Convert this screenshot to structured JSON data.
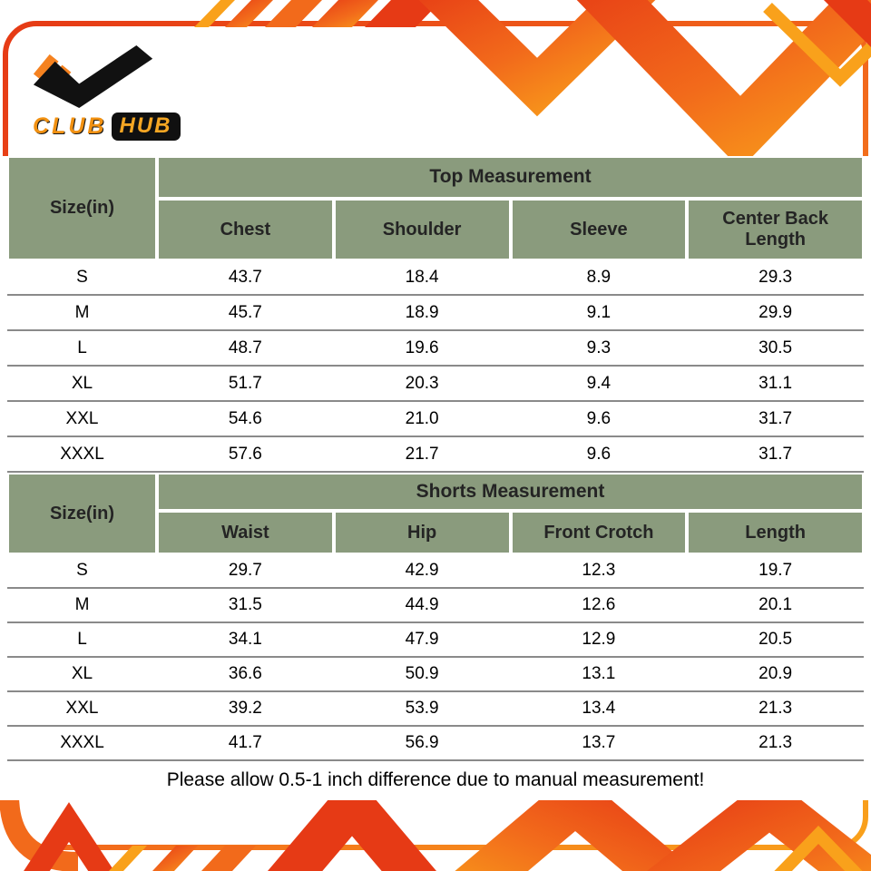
{
  "brand": {
    "primary": "CLUB",
    "secondary": "HUB"
  },
  "colors": {
    "header_green": "#8a9b7d",
    "accent_red": "#e63a15",
    "accent_orange": "#f26a1b",
    "accent_yellow": "#f9a11b",
    "row_line_gray": "#8a8a8a"
  },
  "footer": {
    "note": "Please allow 0.5-1 inch difference due to manual measurement!"
  },
  "chart_data": [
    {
      "type": "table",
      "title": "Top Measurement",
      "size_header": "Size(in)",
      "columns": [
        "Chest",
        "Shoulder",
        "Sleeve",
        "Center Back Length"
      ],
      "rows": [
        [
          "S",
          "43.7",
          "18.4",
          "8.9",
          "29.3"
        ],
        [
          "M",
          "45.7",
          "18.9",
          "9.1",
          "29.9"
        ],
        [
          "L",
          "48.7",
          "19.6",
          "9.3",
          "30.5"
        ],
        [
          "XL",
          "51.7",
          "20.3",
          "9.4",
          "31.1"
        ],
        [
          "XXL",
          "54.6",
          "21.0",
          "9.6",
          "31.7"
        ],
        [
          "XXXL",
          "57.6",
          "21.7",
          "9.6",
          "31.7"
        ]
      ]
    },
    {
      "type": "table",
      "title": "Shorts Measurement",
      "size_header": "Size(in)",
      "columns": [
        "Waist",
        "Hip",
        "Front Crotch",
        "Length"
      ],
      "rows": [
        [
          "S",
          "29.7",
          "42.9",
          "12.3",
          "19.7"
        ],
        [
          "M",
          "31.5",
          "44.9",
          "12.6",
          "20.1"
        ],
        [
          "L",
          "34.1",
          "47.9",
          "12.9",
          "20.5"
        ],
        [
          "XL",
          "36.6",
          "50.9",
          "13.1",
          "20.9"
        ],
        [
          "XXL",
          "39.2",
          "53.9",
          "13.4",
          "21.3"
        ],
        [
          "XXXL",
          "41.7",
          "56.9",
          "13.7",
          "21.3"
        ]
      ]
    }
  ]
}
